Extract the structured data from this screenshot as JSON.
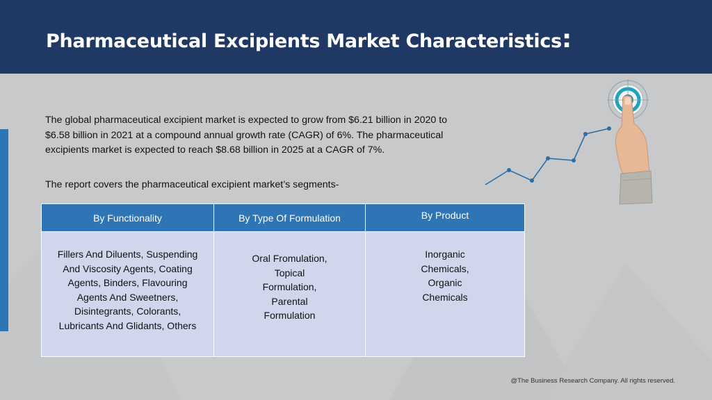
{
  "header": {
    "title": "Pharmaceutical Excipients Market Characteristics",
    "title_suffix": ":"
  },
  "intro": {
    "paragraph": "The global pharmaceutical excipient market is expected to grow from $6.21 billion in 2020 to $6.58 billion in 2021 at a compound annual growth rate (CAGR) of 6%. The pharmaceutical excipients market is expected to reach $8.68 billion in 2025 at a CAGR of 7%.",
    "segments_line": "The report covers the pharmaceutical excipient market’s segments-"
  },
  "table": {
    "headers": [
      "By Functionality",
      "By Type Of Formulation",
      "By Product"
    ],
    "cells": [
      [
        "Fillers And Diluents, Suspending",
        "And Viscosity Agents, Coating",
        "Agents, Binders, Flavouring",
        "Agents And Sweetners,",
        "Disintegrants, Colorants,",
        "Lubricants And Glidants, Others"
      ],
      [
        "Oral Fromulation,",
        "Topical",
        "Formulation,",
        "Parental",
        "Formulation"
      ],
      [
        "Inorganic",
        "Chemicals,",
        "Organic",
        "Chemicals"
      ]
    ]
  },
  "icons": {
    "illustration": "hand-touching-target-growth-chart-icon"
  },
  "colors": {
    "header_bg": "#1f3864",
    "table_header_bg": "#2e75b6",
    "table_cell_bg": "#d0d7ec",
    "accent_bar": "#2e75b6",
    "page_bg": "#c9cacc"
  },
  "footer": {
    "copyright": "@The Business Research Company. All rights reserved."
  }
}
